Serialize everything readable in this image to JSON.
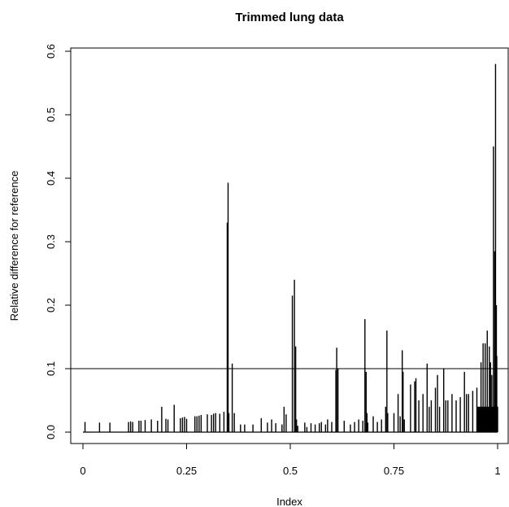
{
  "chart_data": {
    "type": "bar",
    "title": "Trimmed lung data",
    "xlabel": "Index",
    "ylabel": "Relative difference for reference",
    "xlim": [
      -0.02,
      1.02
    ],
    "ylim": [
      0,
      0.6
    ],
    "x_ticks": [
      0,
      0.25,
      0.5,
      0.75,
      1
    ],
    "x_tick_labels": [
      "0",
      "0.25",
      "0.5",
      "0.75",
      "1"
    ],
    "y_ticks": [
      0,
      0.1,
      0.2,
      0.3,
      0.4,
      0.5,
      0.6
    ],
    "y_tick_labels": [
      "0.0",
      "0.1",
      "0.2",
      "0.3",
      "0.4",
      "0.5",
      "0.6"
    ],
    "reference_line": 0.1,
    "grid": false,
    "legend": "none",
    "bar_color": "#000000",
    "x": [
      0.005,
      0.04,
      0.065,
      0.11,
      0.115,
      0.12,
      0.135,
      0.14,
      0.15,
      0.165,
      0.18,
      0.19,
      0.2,
      0.205,
      0.22,
      0.235,
      0.24,
      0.245,
      0.25,
      0.27,
      0.275,
      0.28,
      0.285,
      0.3,
      0.31,
      0.315,
      0.32,
      0.33,
      0.34,
      0.348,
      0.35,
      0.352,
      0.36,
      0.365,
      0.38,
      0.39,
      0.41,
      0.43,
      0.445,
      0.455,
      0.465,
      0.48,
      0.485,
      0.49,
      0.505,
      0.51,
      0.513,
      0.515,
      0.518,
      0.535,
      0.54,
      0.55,
      0.56,
      0.57,
      0.575,
      0.585,
      0.59,
      0.6,
      0.61,
      0.612,
      0.615,
      0.63,
      0.645,
      0.655,
      0.665,
      0.675,
      0.68,
      0.683,
      0.685,
      0.687,
      0.7,
      0.71,
      0.72,
      0.73,
      0.733,
      0.735,
      0.75,
      0.76,
      0.765,
      0.77,
      0.772,
      0.775,
      0.79,
      0.8,
      0.803,
      0.81,
      0.82,
      0.83,
      0.835,
      0.84,
      0.85,
      0.855,
      0.86,
      0.87,
      0.875,
      0.88,
      0.89,
      0.9,
      0.91,
      0.92,
      0.925,
      0.93,
      0.94,
      0.95,
      0.96,
      0.965,
      0.97,
      0.975,
      0.98,
      0.983,
      0.986,
      0.99,
      0.993,
      0.995,
      0.997,
      0.998,
      1.0
    ],
    "values": [
      0.016,
      0.015,
      0.015,
      0.016,
      0.017,
      0.016,
      0.018,
      0.018,
      0.019,
      0.02,
      0.018,
      0.04,
      0.021,
      0.02,
      0.043,
      0.022,
      0.023,
      0.024,
      0.021,
      0.025,
      0.025,
      0.026,
      0.027,
      0.028,
      0.027,
      0.029,
      0.03,
      0.029,
      0.032,
      0.33,
      0.393,
      0.03,
      0.108,
      0.03,
      0.012,
      0.012,
      0.012,
      0.022,
      0.015,
      0.02,
      0.014,
      0.012,
      0.04,
      0.028,
      0.215,
      0.24,
      0.135,
      0.02,
      0.01,
      0.015,
      0.008,
      0.014,
      0.012,
      0.014,
      0.016,
      0.012,
      0.02,
      0.016,
      0.098,
      0.133,
      0.1,
      0.018,
      0.012,
      0.016,
      0.02,
      0.018,
      0.178,
      0.095,
      0.03,
      0.015,
      0.025,
      0.016,
      0.02,
      0.04,
      0.16,
      0.03,
      0.03,
      0.06,
      0.025,
      0.129,
      0.095,
      0.02,
      0.075,
      0.08,
      0.085,
      0.05,
      0.06,
      0.108,
      0.04,
      0.05,
      0.07,
      0.09,
      0.04,
      0.1,
      0.05,
      0.05,
      0.06,
      0.05,
      0.055,
      0.095,
      0.06,
      0.06,
      0.065,
      0.07,
      0.11,
      0.14,
      0.14,
      0.16,
      0.135,
      0.11,
      0.09,
      0.45,
      0.285,
      0.58,
      0.2,
      0.12,
      0.04
    ]
  }
}
